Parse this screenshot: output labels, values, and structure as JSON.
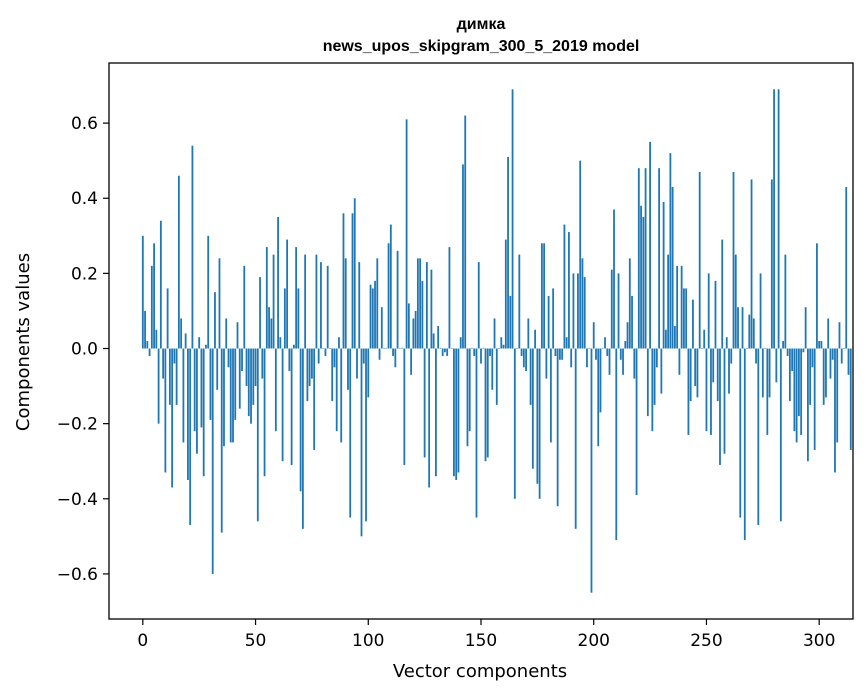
{
  "chart_data": {
    "type": "bar",
    "title": [
      "димка",
      "news_upos_skipgram_300_5_2019 model"
    ],
    "xlabel": "Vector components",
    "ylabel": "Components values",
    "xlim": [
      -15,
      315
    ],
    "ylim": [
      -0.72,
      0.76
    ],
    "x_ticks": [
      0,
      50,
      100,
      150,
      200,
      250,
      300
    ],
    "x_tick_labels": [
      "0",
      "50",
      "100",
      "150",
      "200",
      "250",
      "300"
    ],
    "y_ticks": [
      -0.6,
      -0.4,
      -0.2,
      0.0,
      0.2,
      0.4,
      0.6
    ],
    "y_tick_labels": [
      "−0.6",
      "−0.4",
      "−0.2",
      "0.0",
      "0.2",
      "0.4",
      "0.6"
    ],
    "grid": false,
    "bar_color": "#1f77b4",
    "x_start": 0,
    "values": [
      0.3,
      0.1,
      0.02,
      -0.02,
      0.22,
      0.28,
      0.05,
      -0.2,
      0.34,
      -0.08,
      -0.33,
      0.16,
      -0.15,
      -0.37,
      -0.04,
      -0.15,
      0.46,
      0.08,
      -0.25,
      0.04,
      -0.35,
      -0.47,
      0.54,
      -0.22,
      -0.28,
      0.03,
      -0.21,
      -0.34,
      0.01,
      0.3,
      -0.19,
      -0.6,
      0.15,
      -0.11,
      0.24,
      -0.49,
      -0.26,
      0.08,
      -0.05,
      -0.25,
      -0.25,
      -0.19,
      0.07,
      -0.16,
      -0.06,
      0.22,
      -0.1,
      -0.18,
      -0.2,
      -0.15,
      -0.1,
      -0.46,
      0.19,
      -0.08,
      -0.34,
      0.27,
      0.11,
      0.08,
      0.25,
      -0.22,
      0.35,
      0.03,
      -0.3,
      0.16,
      0.29,
      -0.06,
      -0.31,
      0.01,
      0.27,
      0.16,
      -0.38,
      -0.48,
      0.25,
      -0.14,
      -0.1,
      -0.08,
      -0.27,
      0.25,
      -0.04,
      0.23,
      0.0,
      -0.02,
      0.22,
      0.0,
      -0.14,
      -0.05,
      -0.22,
      0.03,
      -0.25,
      0.36,
      0.24,
      -0.11,
      -0.45,
      0.36,
      0.4,
      -0.08,
      0.23,
      -0.5,
      -0.04,
      -0.46,
      -0.13,
      0.17,
      0.16,
      0.18,
      0.24,
      -0.03,
      0.11,
      0.0,
      0.0,
      0.28,
      0.33,
      -0.02,
      -0.05,
      0.26,
      0.0,
      0.0,
      -0.31,
      0.61,
      0.12,
      -0.07,
      0.08,
      0.1,
      0.24,
      0.24,
      0.18,
      -0.29,
      0.23,
      -0.37,
      0.21,
      0.04,
      -0.34,
      0.06,
      0.0,
      -0.02,
      -0.01,
      -0.02,
      0.27,
      0.0,
      -0.34,
      -0.35,
      -0.33,
      0.03,
      0.49,
      0.62,
      -0.26,
      -0.22,
      0.0,
      -0.02,
      -0.45,
      0.23,
      -0.04,
      0.0,
      -0.3,
      -0.29,
      -0.02,
      -0.11,
      0.08,
      -0.15,
      0.0,
      0.03,
      0.01,
      0.29,
      0.51,
      0.14,
      0.69,
      -0.4,
      0.0,
      0.25,
      -0.02,
      -0.05,
      -0.06,
      0.08,
      -0.15,
      -0.32,
      0.05,
      -0.36,
      -0.4,
      0.28,
      0.28,
      -0.08,
      0.14,
      -0.25,
      0.16,
      -0.02,
      -0.42,
      -0.03,
      -0.03,
      0.33,
      0.03,
      0.31,
      -0.05,
      0.2,
      -0.48,
      0.2,
      0.5,
      0.24,
      0.19,
      -0.05,
      0.0,
      -0.65,
      0.07,
      -0.03,
      -0.26,
      -0.17,
      0.0,
      0.03,
      -0.02,
      -0.07,
      0.21,
      0.37,
      -0.51,
      0.2,
      -0.03,
      -0.07,
      0.02,
      0.07,
      0.24,
      0.14,
      -0.08,
      -0.39,
      0.48,
      0.38,
      0.35,
      0.48,
      -0.18,
      0.55,
      -0.22,
      -0.15,
      -0.05,
      0.48,
      -0.12,
      0.39,
      0.05,
      0.25,
      0.52,
      0.43,
      0.06,
      0.22,
      -0.07,
      0.22,
      0.16,
      0.16,
      -0.23,
      -0.14,
      0.13,
      -0.1,
      -0.13,
      0.47,
      0.0,
      0.05,
      -0.22,
      0.2,
      -0.23,
      -0.09,
      0.18,
      -0.14,
      -0.31,
      0.29,
      -0.28,
      0.03,
      -0.12,
      -0.04,
      0.47,
      0.25,
      0.11,
      -0.45,
      0.11,
      -0.51,
      0.0,
      0.09,
      0.45,
      0.08,
      -0.04,
      -0.47,
      0.2,
      -0.13,
      0.0,
      -0.23,
      -0.13,
      0.45,
      0.69,
      -0.09,
      0.69,
      -0.46,
      0.02,
      0.25,
      -0.02,
      -0.14,
      -0.06,
      -0.22,
      -0.25,
      -0.18,
      -0.23,
      -0.01,
      0.11,
      -0.3,
      -0.15,
      -0.05,
      -0.27,
      0.28,
      0.02,
      0.02,
      -0.15,
      -0.13,
      0.08,
      -0.08,
      -0.03,
      -0.33,
      -0.25,
      0.07,
      -0.04,
      0.0,
      0.43,
      -0.07,
      -0.27
    ]
  }
}
